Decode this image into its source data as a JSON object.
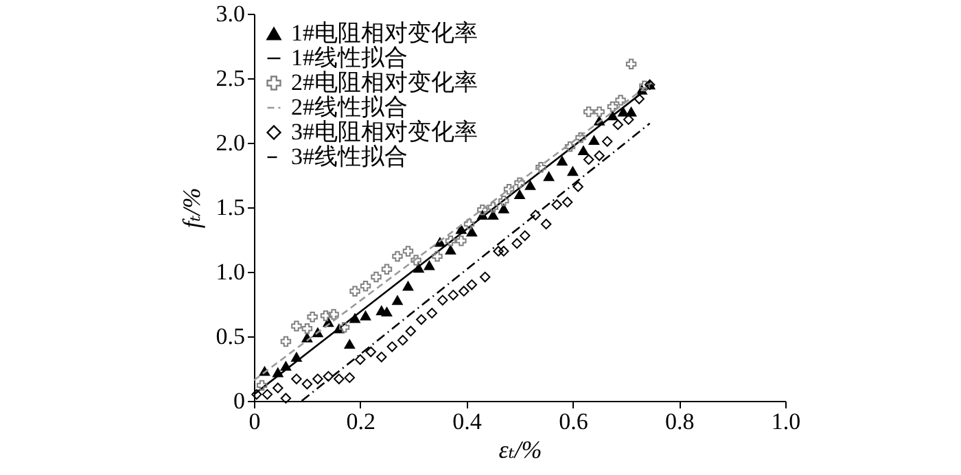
{
  "chart_data": {
    "type": "scatter",
    "xlabel": "εₜ/%",
    "ylabel": "fₜ/%",
    "xlim": [
      0,
      1
    ],
    "ylim": [
      0,
      3
    ],
    "xticks": [
      0,
      0.2,
      0.4,
      0.6,
      0.8,
      {
        "value": 1,
        "label": "1.0"
      }
    ],
    "yticks": [
      0,
      0.5,
      {
        "value": 1,
        "label": "1.0"
      },
      1.5,
      {
        "value": 2,
        "label": "2.0"
      },
      2.5,
      {
        "value": 3,
        "label": "3.0"
      }
    ],
    "legend": "top left",
    "grid": false,
    "series": [
      {
        "name": "1#电阻相对变化率",
        "marker": "triangle",
        "color": "#000000",
        "x": [
          0.02,
          0.045,
          0.06,
          0.08,
          0.1,
          0.12,
          0.14,
          0.16,
          0.18,
          0.19,
          0.21,
          0.24,
          0.25,
          0.27,
          0.29,
          0.31,
          0.33,
          0.35,
          0.37,
          0.39,
          0.41,
          0.43,
          0.45,
          0.47,
          0.5,
          0.52,
          0.555,
          0.58,
          0.6,
          0.62,
          0.64,
          0.65,
          0.675,
          0.695,
          0.71,
          0.73,
          0.745
        ],
        "values": [
          0.23,
          0.22,
          0.27,
          0.34,
          0.49,
          0.53,
          0.61,
          0.56,
          0.44,
          0.64,
          0.66,
          0.7,
          0.69,
          0.78,
          0.89,
          1.03,
          1.05,
          1.23,
          1.17,
          1.33,
          1.31,
          1.44,
          1.44,
          1.49,
          1.6,
          1.67,
          1.74,
          1.86,
          1.78,
          1.94,
          2.02,
          2.17,
          2.21,
          2.24,
          2.24,
          2.41,
          2.45
        ]
      },
      {
        "name": "1#线性拟合",
        "type": "line",
        "line_style": "solid",
        "color": "#000000",
        "x": [
          0,
          0.75
        ],
        "values": [
          0.05,
          2.45
        ]
      },
      {
        "name": "2#电阻相对变化率",
        "marker": "cross",
        "color": "#808080",
        "x": [
          0.015,
          0.06,
          0.08,
          0.1,
          0.11,
          0.135,
          0.15,
          0.17,
          0.19,
          0.21,
          0.23,
          0.25,
          0.27,
          0.29,
          0.305,
          0.345,
          0.37,
          0.39,
          0.405,
          0.43,
          0.45,
          0.47,
          0.48,
          0.5,
          0.54,
          0.595,
          0.615,
          0.63,
          0.65,
          0.675,
          0.69,
          0.71,
          0.735
        ],
        "values": [
          0.12,
          0.46,
          0.58,
          0.56,
          0.65,
          0.66,
          0.67,
          0.57,
          0.85,
          0.89,
          0.96,
          1.02,
          1.12,
          1.16,
          1.09,
          1.12,
          1.24,
          1.24,
          1.37,
          1.48,
          1.5,
          1.55,
          1.64,
          1.69,
          1.81,
          1.97,
          2.04,
          2.24,
          2.24,
          2.28,
          2.33,
          2.61,
          2.44
        ]
      },
      {
        "name": "2#线性拟合",
        "type": "line",
        "line_style": "dashed",
        "color": "#999999",
        "x": [
          0,
          0.75
        ],
        "values": [
          0.16,
          2.47
        ]
      },
      {
        "name": "3#电阻相对变化率",
        "marker": "diamond",
        "color": "#000000",
        "x": [
          0.005,
          0.025,
          0.045,
          0.06,
          0.08,
          0.1,
          0.12,
          0.14,
          0.16,
          0.18,
          0.2,
          0.22,
          0.24,
          0.26,
          0.28,
          0.295,
          0.315,
          0.335,
          0.355,
          0.375,
          0.395,
          0.41,
          0.435,
          0.46,
          0.47,
          0.495,
          0.51,
          0.53,
          0.55,
          0.57,
          0.59,
          0.61,
          0.63,
          0.65,
          0.665,
          0.685,
          0.705,
          0.725,
          0.745
        ],
        "values": [
          0.05,
          0.05,
          0.1,
          0.02,
          0.17,
          0.13,
          0.17,
          0.19,
          0.17,
          0.18,
          0.32,
          0.38,
          0.34,
          0.42,
          0.47,
          0.54,
          0.63,
          0.68,
          0.78,
          0.82,
          0.85,
          0.9,
          0.96,
          1.16,
          1.16,
          1.22,
          1.28,
          1.44,
          1.37,
          1.52,
          1.54,
          1.66,
          1.87,
          1.9,
          2.01,
          2.14,
          2.18,
          2.34,
          2.45
        ]
      },
      {
        "name": "3#线性拟合",
        "type": "line",
        "line_style": "dashdot",
        "color": "#000000",
        "x": [
          0.09,
          0.745
        ],
        "values": [
          0,
          2.15
        ]
      }
    ]
  }
}
